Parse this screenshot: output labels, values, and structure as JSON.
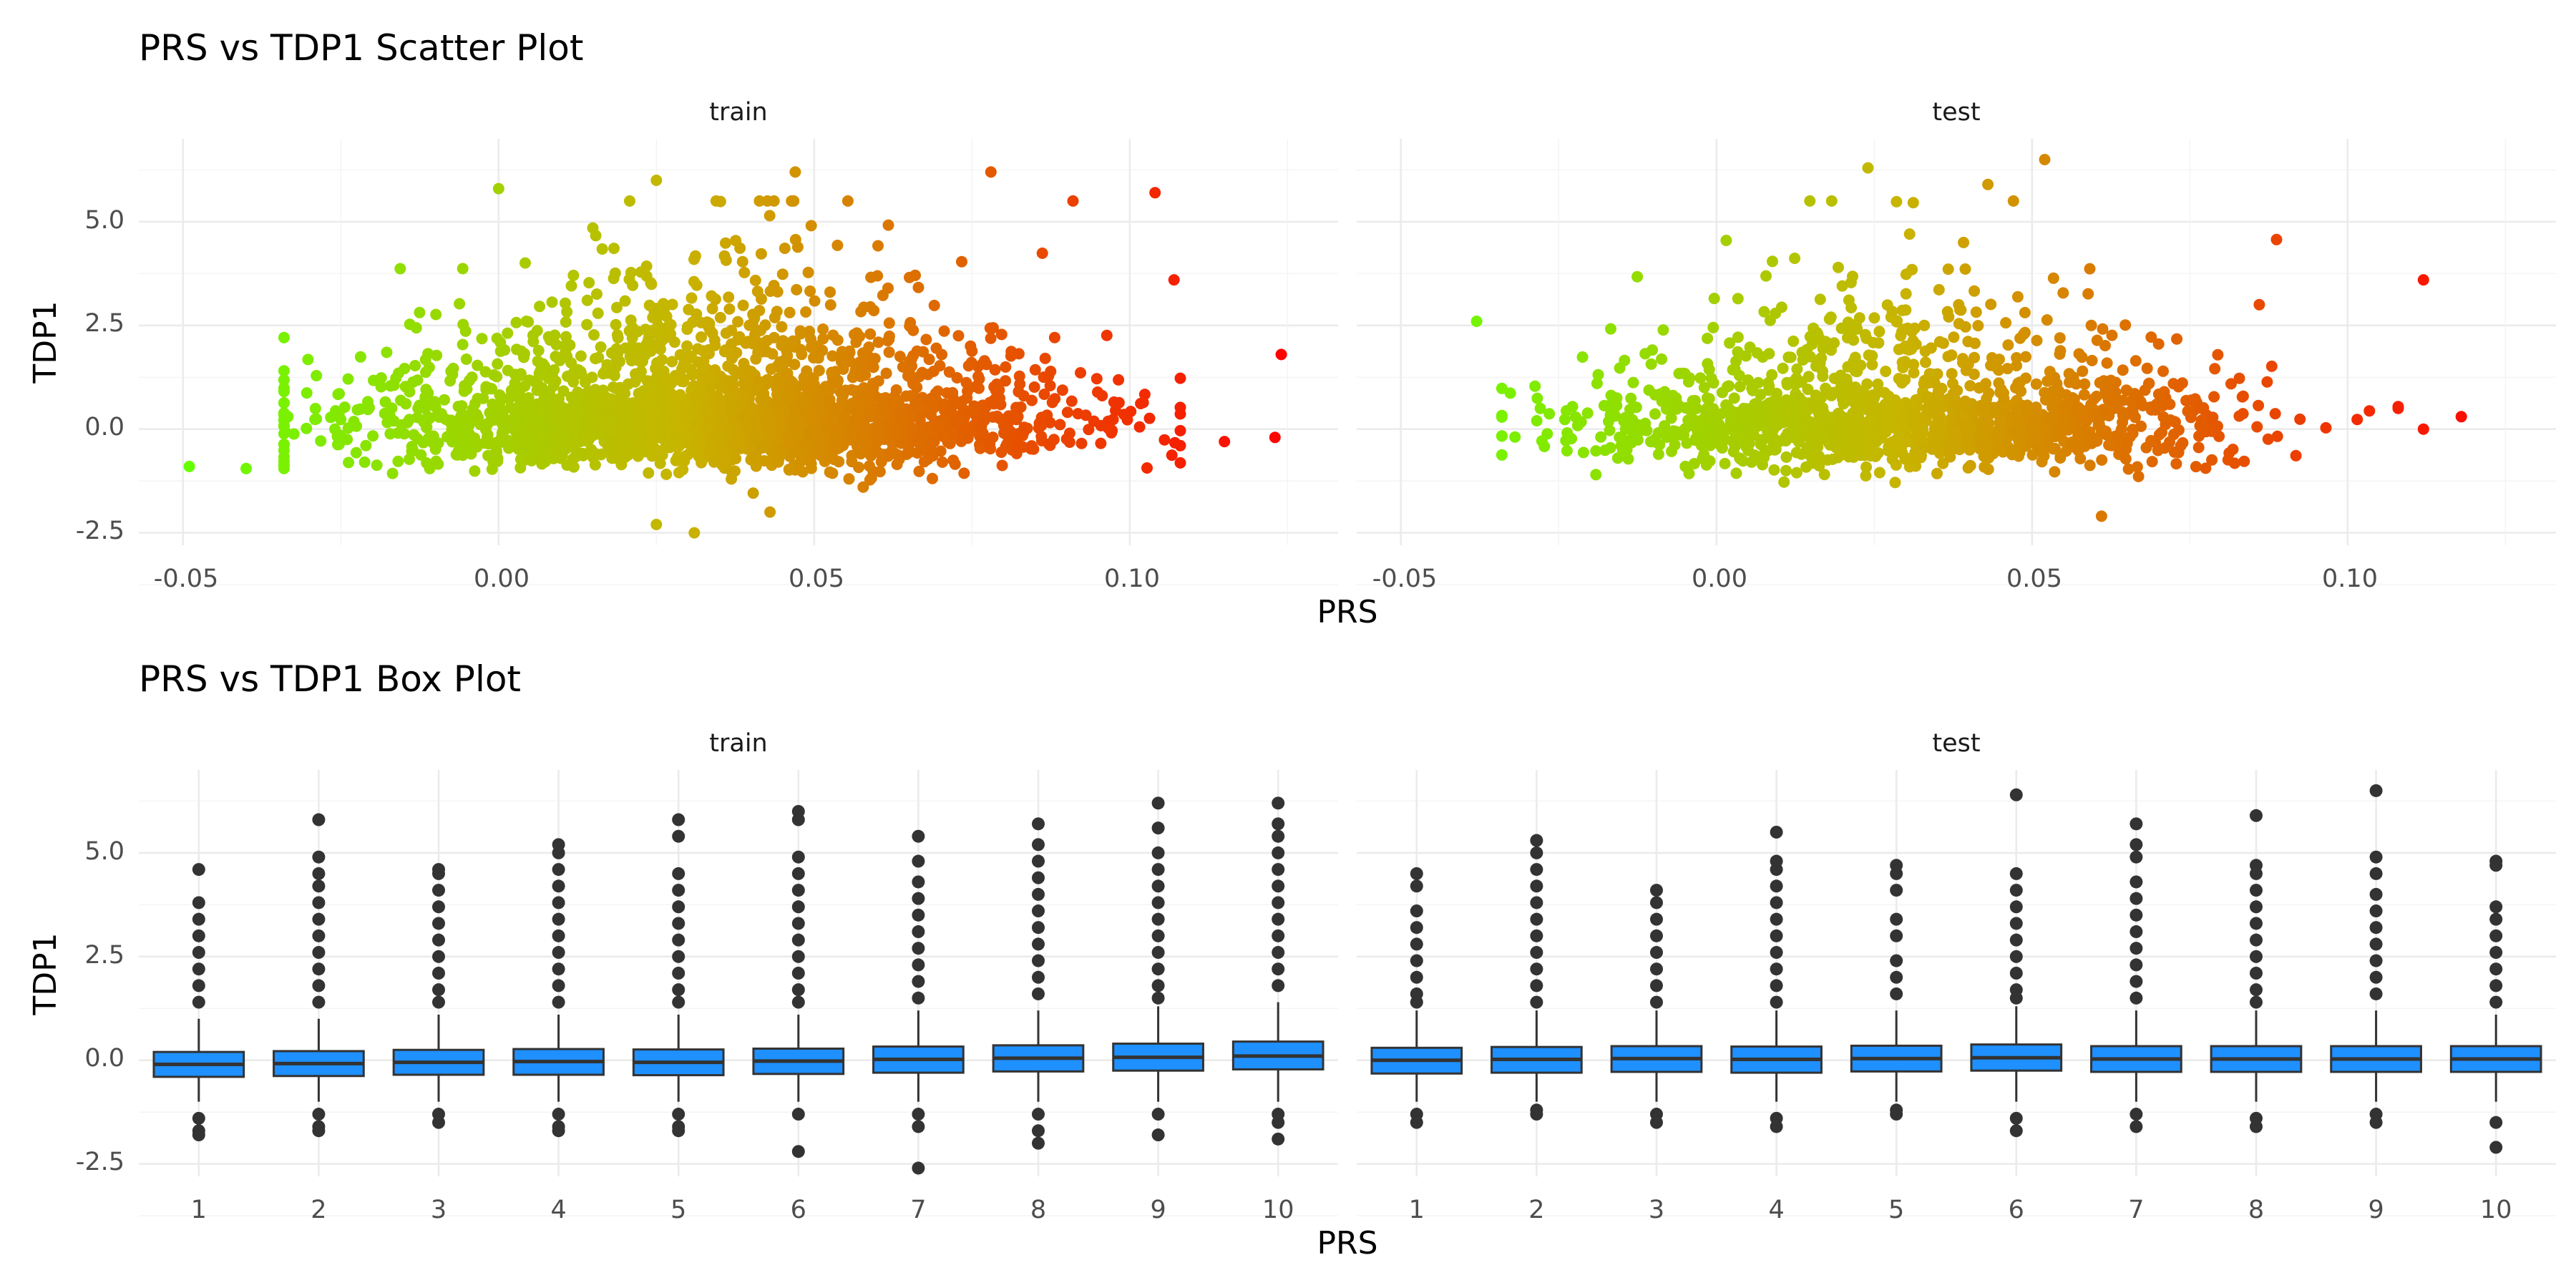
{
  "scatter": {
    "title": "PRS vs TDP1 Scatter Plot",
    "xlabel": "PRS",
    "ylabel": "TDP1",
    "panels": [
      "train",
      "test"
    ],
    "x_ticks": [
      "-0.05",
      "0.00",
      "0.05",
      "0.10"
    ],
    "y_ticks": [
      "5.0",
      "2.5",
      "0.0",
      "-2.5"
    ]
  },
  "box": {
    "title": "PRS vs TDP1 Box Plot",
    "xlabel": "PRS",
    "ylabel": "TDP1",
    "panels": [
      "train",
      "test"
    ],
    "x_ticks": [
      "1",
      "2",
      "3",
      "4",
      "5",
      "6",
      "7",
      "8",
      "9",
      "10"
    ],
    "y_ticks": [
      "5.0",
      "2.5",
      "0.0",
      "-2.5"
    ]
  },
  "colors": {
    "gradient_low": "#66ff00",
    "gradient_mid": "#c8b400",
    "gradient_high": "#ff0000",
    "box_fill": "#1e90ff",
    "box_line": "#333333"
  },
  "chart_data": [
    {
      "type": "scatter",
      "title": "PRS vs TDP1 Scatter Plot",
      "xlabel": "PRS",
      "ylabel": "TDP1",
      "xlim": [
        -0.057,
        0.133
      ],
      "ylim": [
        -2.8,
        7.0
      ],
      "color_by": "PRS (green low to red high)",
      "panels": [
        {
          "name": "train",
          "summary": "dense cloud centered near TDP1 0 from PRS -0.03 to 0.11, upper spread to ~6",
          "outliers": [
            {
              "x": -0.049,
              "y": -0.9
            },
            {
              "x": -0.04,
              "y": -0.95
            },
            {
              "x": 0.025,
              "y": 6.0
            },
            {
              "x": 0.047,
              "y": 6.2
            },
            {
              "x": 0.078,
              "y": 6.2
            },
            {
              "x": 0.0,
              "y": 5.8
            },
            {
              "x": 0.104,
              "y": 5.7
            },
            {
              "x": 0.091,
              "y": 5.5
            },
            {
              "x": 0.107,
              "y": 3.6
            },
            {
              "x": 0.124,
              "y": 1.8
            },
            {
              "x": 0.123,
              "y": -0.2
            },
            {
              "x": 0.115,
              "y": -0.3
            },
            {
              "x": 0.031,
              "y": -2.5
            },
            {
              "x": 0.025,
              "y": -2.3
            },
            {
              "x": 0.043,
              "y": -2.0
            }
          ]
        },
        {
          "name": "test",
          "summary": "cloud centered near TDP1 0 from PRS -0.04 to 0.12, sparser than train",
          "outliers": [
            {
              "x": -0.038,
              "y": 2.6
            },
            {
              "x": 0.024,
              "y": 6.3
            },
            {
              "x": 0.052,
              "y": 6.5
            },
            {
              "x": 0.043,
              "y": 5.9
            },
            {
              "x": 0.112,
              "y": 3.6
            },
            {
              "x": 0.118,
              "y": 0.3
            },
            {
              "x": 0.112,
              "y": 0.0
            },
            {
              "x": 0.108,
              "y": 0.5
            },
            {
              "x": 0.061,
              "y": -2.1
            },
            {
              "x": 0.086,
              "y": 3.0
            }
          ]
        }
      ]
    },
    {
      "type": "box",
      "title": "PRS vs TDP1 Box Plot",
      "xlabel": "PRS",
      "ylabel": "TDP1",
      "ylim": [
        -2.8,
        7.0
      ],
      "categories": [
        "1",
        "2",
        "3",
        "4",
        "5",
        "6",
        "7",
        "8",
        "9",
        "10"
      ],
      "series": [
        {
          "name": "train",
          "boxes": [
            {
              "q1": -0.4,
              "median": -0.1,
              "q3": 0.2,
              "whislo": -1.0,
              "whishi": 1.0,
              "outliers": [
                4.6,
                3.8,
                3.4,
                3.0,
                2.6,
                2.2,
                1.8,
                1.4,
                -1.4,
                -1.7,
                -1.8
              ]
            },
            {
              "q1": -0.38,
              "median": -0.08,
              "q3": 0.22,
              "whislo": -1.0,
              "whishi": 1.0,
              "outliers": [
                5.8,
                4.9,
                4.5,
                4.2,
                3.8,
                3.4,
                3.0,
                2.6,
                2.2,
                1.8,
                1.4,
                -1.3,
                -1.6,
                -1.7
              ]
            },
            {
              "q1": -0.35,
              "median": -0.05,
              "q3": 0.25,
              "whislo": -1.0,
              "whishi": 1.1,
              "outliers": [
                4.6,
                4.5,
                4.1,
                3.7,
                3.3,
                2.9,
                2.5,
                2.1,
                1.7,
                1.4,
                -1.3,
                -1.5
              ]
            },
            {
              "q1": -0.35,
              "median": -0.03,
              "q3": 0.27,
              "whislo": -1.0,
              "whishi": 1.1,
              "outliers": [
                5.2,
                5.0,
                4.6,
                4.2,
                3.8,
                3.4,
                3.0,
                2.6,
                2.2,
                1.8,
                1.4,
                -1.3,
                -1.6,
                -1.7
              ]
            },
            {
              "q1": -0.36,
              "median": -0.05,
              "q3": 0.26,
              "whislo": -1.0,
              "whishi": 1.1,
              "outliers": [
                5.8,
                5.4,
                4.5,
                4.1,
                3.7,
                3.3,
                2.9,
                2.5,
                2.1,
                1.7,
                1.4,
                -1.3,
                -1.6,
                -1.7
              ]
            },
            {
              "q1": -0.33,
              "median": -0.02,
              "q3": 0.28,
              "whislo": -1.0,
              "whishi": 1.1,
              "outliers": [
                6.0,
                5.8,
                4.9,
                4.5,
                4.1,
                3.7,
                3.3,
                2.9,
                2.5,
                2.1,
                1.7,
                1.4,
                -1.3,
                -2.2
              ]
            },
            {
              "q1": -0.3,
              "median": 0.02,
              "q3": 0.33,
              "whislo": -1.0,
              "whishi": 1.2,
              "outliers": [
                5.4,
                4.8,
                4.3,
                3.9,
                3.5,
                3.1,
                2.7,
                2.3,
                1.9,
                1.5,
                -1.3,
                -1.6,
                -2.6
              ]
            },
            {
              "q1": -0.27,
              "median": 0.05,
              "q3": 0.36,
              "whislo": -1.0,
              "whishi": 1.2,
              "outliers": [
                5.7,
                5.2,
                4.8,
                4.4,
                4.0,
                3.6,
                3.2,
                2.8,
                2.4,
                2.0,
                1.6,
                -1.3,
                -1.7,
                -2.0
              ]
            },
            {
              "q1": -0.25,
              "median": 0.07,
              "q3": 0.4,
              "whislo": -1.0,
              "whishi": 1.3,
              "outliers": [
                6.2,
                5.6,
                5.0,
                4.6,
                4.2,
                3.8,
                3.4,
                3.0,
                2.6,
                2.2,
                1.8,
                1.5,
                -1.3,
                -1.8
              ]
            },
            {
              "q1": -0.22,
              "median": 0.1,
              "q3": 0.45,
              "whislo": -1.0,
              "whishi": 1.4,
              "outliers": [
                6.2,
                5.7,
                5.4,
                5.0,
                4.6,
                4.2,
                3.8,
                3.4,
                3.0,
                2.6,
                2.2,
                1.8,
                -1.3,
                -1.5,
                -1.9
              ]
            }
          ]
        },
        {
          "name": "test",
          "boxes": [
            {
              "q1": -0.32,
              "median": 0.0,
              "q3": 0.3,
              "whislo": -1.0,
              "whishi": 1.2,
              "outliers": [
                4.5,
                4.2,
                3.6,
                3.2,
                2.8,
                2.4,
                2.0,
                1.6,
                1.4,
                -1.3,
                -1.5
              ]
            },
            {
              "q1": -0.3,
              "median": 0.02,
              "q3": 0.32,
              "whislo": -1.0,
              "whishi": 1.2,
              "outliers": [
                5.3,
                5.0,
                4.6,
                4.2,
                3.8,
                3.4,
                3.0,
                2.6,
                2.2,
                1.8,
                1.4,
                -1.2,
                -1.3
              ]
            },
            {
              "q1": -0.28,
              "median": 0.04,
              "q3": 0.34,
              "whislo": -1.0,
              "whishi": 1.2,
              "outliers": [
                4.1,
                3.8,
                3.4,
                3.0,
                2.6,
                2.2,
                1.8,
                1.4,
                -1.3,
                -1.5
              ]
            },
            {
              "q1": -0.3,
              "median": 0.02,
              "q3": 0.33,
              "whislo": -1.0,
              "whishi": 1.2,
              "outliers": [
                5.5,
                4.8,
                4.6,
                4.2,
                3.8,
                3.4,
                3.0,
                2.6,
                2.2,
                1.8,
                1.4,
                -1.4,
                -1.6
              ]
            },
            {
              "q1": -0.27,
              "median": 0.04,
              "q3": 0.35,
              "whislo": -1.0,
              "whishi": 1.2,
              "outliers": [
                4.7,
                4.5,
                4.1,
                3.4,
                3.0,
                2.4,
                2.0,
                1.6,
                -1.2,
                -1.3
              ]
            },
            {
              "q1": -0.25,
              "median": 0.06,
              "q3": 0.38,
              "whislo": -1.0,
              "whishi": 1.3,
              "outliers": [
                6.4,
                4.5,
                4.1,
                3.7,
                3.3,
                2.9,
                2.5,
                2.1,
                1.7,
                1.5,
                -1.4,
                -1.7
              ]
            },
            {
              "q1": -0.28,
              "median": 0.03,
              "q3": 0.34,
              "whislo": -1.0,
              "whishi": 1.2,
              "outliers": [
                5.7,
                5.2,
                4.9,
                4.3,
                3.9,
                3.5,
                3.1,
                2.7,
                2.3,
                1.9,
                1.5,
                -1.3,
                -1.6
              ]
            },
            {
              "q1": -0.28,
              "median": 0.03,
              "q3": 0.34,
              "whislo": -1.0,
              "whishi": 1.2,
              "outliers": [
                5.9,
                4.7,
                4.5,
                4.1,
                3.7,
                3.3,
                2.9,
                2.5,
                2.1,
                1.7,
                1.4,
                -1.4,
                -1.6
              ]
            },
            {
              "q1": -0.28,
              "median": 0.03,
              "q3": 0.34,
              "whislo": -1.0,
              "whishi": 1.2,
              "outliers": [
                6.5,
                4.9,
                4.5,
                4.0,
                3.6,
                3.2,
                2.8,
                2.4,
                2.0,
                1.6,
                -1.3,
                -1.5
              ]
            },
            {
              "q1": -0.28,
              "median": 0.03,
              "q3": 0.34,
              "whislo": -1.0,
              "whishi": 1.1,
              "outliers": [
                4.8,
                4.7,
                3.7,
                3.4,
                3.0,
                2.6,
                2.2,
                1.8,
                1.4,
                -1.5,
                -2.1
              ]
            }
          ]
        }
      ]
    }
  ]
}
